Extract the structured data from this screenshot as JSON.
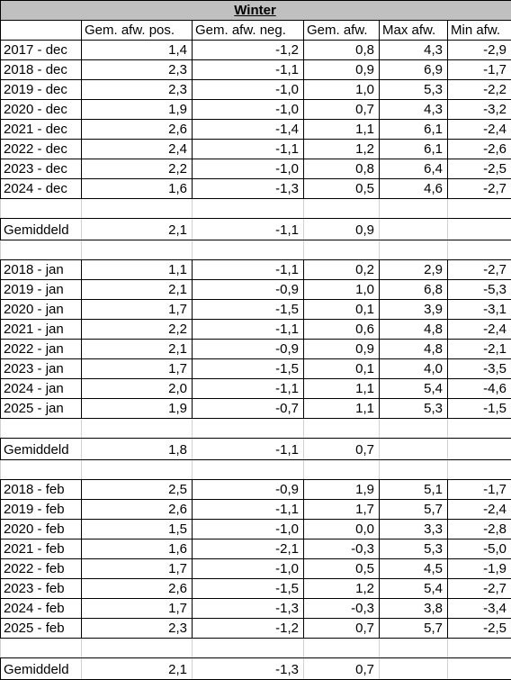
{
  "title": "Winter",
  "headers": [
    "",
    "Gem. afw. pos.",
    "Gem. afw. neg.",
    "Gem. afw.",
    "Max afw.",
    "Min afw."
  ],
  "sections": [
    {
      "rows": [
        [
          "2017 - dec",
          "1,4",
          "-1,2",
          "0,8",
          "4,3",
          "-2,9"
        ],
        [
          "2018 - dec",
          "2,3",
          "-1,1",
          "0,9",
          "6,9",
          "-1,7"
        ],
        [
          "2019 - dec",
          "2,3",
          "-1,0",
          "1,0",
          "5,3",
          "-2,2"
        ],
        [
          "2020 - dec",
          "1,9",
          "-1,0",
          "0,7",
          "4,3",
          "-3,2"
        ],
        [
          "2021 - dec",
          "2,6",
          "-1,4",
          "1,1",
          "6,1",
          "-2,4"
        ],
        [
          "2022 - dec",
          "2,4",
          "-1,1",
          "1,2",
          "6,1",
          "-2,6"
        ],
        [
          "2023 - dec",
          "2,2",
          "-1,0",
          "0,8",
          "6,4",
          "-2,5"
        ],
        [
          "2024 - dec",
          "1,6",
          "-1,3",
          "0,5",
          "4,6",
          "-2,7"
        ]
      ],
      "average": [
        "Gemiddeld",
        "2,1",
        "-1,1",
        "0,9",
        "",
        ""
      ]
    },
    {
      "rows": [
        [
          "2018 - jan",
          "1,1",
          "-1,1",
          "0,2",
          "2,9",
          "-2,7"
        ],
        [
          "2019 - jan",
          "2,1",
          "-0,9",
          "1,0",
          "6,8",
          "-5,3"
        ],
        [
          "2020 - jan",
          "1,7",
          "-1,5",
          "0,1",
          "3,9",
          "-3,1"
        ],
        [
          "2021 - jan",
          "2,2",
          "-1,1",
          "0,6",
          "4,8",
          "-2,4"
        ],
        [
          "2022 - jan",
          "2,1",
          "-0,9",
          "0,9",
          "4,8",
          "-2,1"
        ],
        [
          "2023 - jan",
          "1,7",
          "-1,5",
          "0,1",
          "4,0",
          "-3,5"
        ],
        [
          "2024 - jan",
          "2,0",
          "-1,1",
          "1,1",
          "5,4",
          "-4,6"
        ],
        [
          "2025 - jan",
          "1,9",
          "-0,7",
          "1,1",
          "5,3",
          "-1,5"
        ]
      ],
      "average": [
        "Gemiddeld",
        "1,8",
        "-1,1",
        "0,7",
        "",
        ""
      ]
    },
    {
      "rows": [
        [
          "2018 - feb",
          "2,5",
          "-0,9",
          "1,9",
          "5,1",
          "-1,7"
        ],
        [
          "2019 - feb",
          "2,6",
          "-1,1",
          "1,7",
          "5,7",
          "-2,4"
        ],
        [
          "2020 - feb",
          "1,5",
          "-1,0",
          "0,0",
          "3,3",
          "-2,8"
        ],
        [
          "2021 - feb",
          "1,6",
          "-2,1",
          "-0,3",
          "5,3",
          "-5,0"
        ],
        [
          "2022 - feb",
          "1,7",
          "-1,0",
          "0,5",
          "4,5",
          "-1,9"
        ],
        [
          "2023 - feb",
          "2,6",
          "-1,5",
          "1,2",
          "5,4",
          "-2,7"
        ],
        [
          "2024 - feb",
          "1,7",
          "-1,3",
          "-0,3",
          "3,8",
          "-3,4"
        ],
        [
          "2025 - feb",
          "2,3",
          "-1,2",
          "0,7",
          "5,7",
          "-2,5"
        ]
      ],
      "average": [
        "Gemiddeld",
        "2,1",
        "-1,3",
        "0,7",
        "",
        ""
      ]
    }
  ]
}
